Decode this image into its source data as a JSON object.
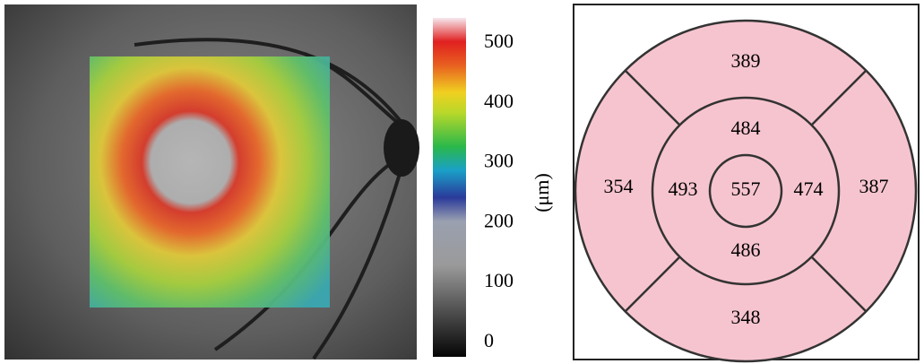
{
  "colorbar": {
    "ticks": [
      0,
      100,
      200,
      300,
      400,
      500
    ],
    "unit": "(μm)"
  },
  "etdrs": {
    "outer_superior": 389,
    "outer_nasal": 387,
    "outer_inferior": 348,
    "outer_temporal": 354,
    "inner_superior": 484,
    "inner_nasal": 474,
    "inner_inferior": 486,
    "inner_temporal": 493,
    "center": 557
  }
}
